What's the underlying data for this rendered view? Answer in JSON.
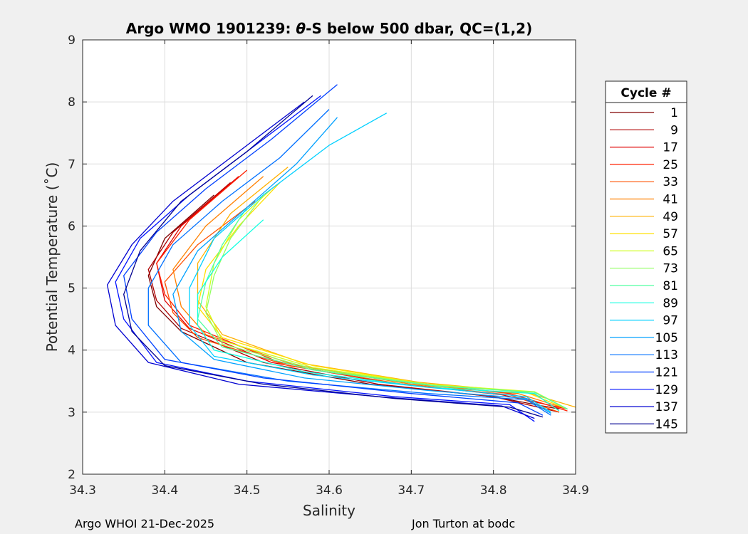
{
  "chart_data": {
    "type": "line",
    "title_prefix": "Argo WMO 1901239: ",
    "title_theta": "θ",
    "title_suffix": "-S below 500 dbar,  QC=(1,2)",
    "xlabel": "Salinity",
    "ylabel": "Potential Temperature (˚C)",
    "xlim": [
      34.3,
      34.9
    ],
    "ylim": [
      2,
      9
    ],
    "xticks": [
      "34.3",
      "34.4",
      "34.5",
      "34.6",
      "34.7",
      "34.8",
      "34.9"
    ],
    "yticks": [
      "2",
      "3",
      "4",
      "5",
      "6",
      "7",
      "8",
      "9"
    ],
    "grid": true,
    "legend_title": "Cycle #",
    "legend_position": "right-outside",
    "series": [
      {
        "name": "1",
        "color": "#800000",
        "points": [
          [
            34.46,
            6.5
          ],
          [
            34.4,
            5.8
          ],
          [
            34.38,
            5.2
          ],
          [
            34.39,
            4.7
          ],
          [
            34.42,
            4.3
          ],
          [
            34.5,
            3.8
          ],
          [
            34.65,
            3.45
          ],
          [
            34.8,
            3.25
          ],
          [
            34.88,
            3.05
          ]
        ]
      },
      {
        "name": "9",
        "color": "#b00000",
        "points": [
          [
            34.48,
            6.7
          ],
          [
            34.41,
            5.9
          ],
          [
            34.38,
            5.3
          ],
          [
            34.39,
            4.8
          ],
          [
            34.42,
            4.35
          ],
          [
            34.52,
            3.8
          ],
          [
            34.66,
            3.45
          ],
          [
            34.8,
            3.25
          ],
          [
            34.88,
            3.0
          ]
        ]
      },
      {
        "name": "17",
        "color": "#e00000",
        "points": [
          [
            34.49,
            6.8
          ],
          [
            34.42,
            6.0
          ],
          [
            34.39,
            5.4
          ],
          [
            34.4,
            4.8
          ],
          [
            34.43,
            4.35
          ],
          [
            34.53,
            3.8
          ],
          [
            34.67,
            3.48
          ],
          [
            34.81,
            3.28
          ],
          [
            34.89,
            3.05
          ]
        ]
      },
      {
        "name": "25",
        "color": "#ff2000",
        "points": [
          [
            34.5,
            6.9
          ],
          [
            34.43,
            6.1
          ],
          [
            34.39,
            5.4
          ],
          [
            34.4,
            4.9
          ],
          [
            34.43,
            4.4
          ],
          [
            34.54,
            3.8
          ],
          [
            34.68,
            3.5
          ],
          [
            34.82,
            3.3
          ],
          [
            34.89,
            3.02
          ]
        ]
      },
      {
        "name": "33",
        "color": "#ff5000",
        "points": [
          [
            34.51,
            6.4
          ],
          [
            34.44,
            5.7
          ],
          [
            34.4,
            5.1
          ],
          [
            34.41,
            4.6
          ],
          [
            34.44,
            4.2
          ],
          [
            34.55,
            3.75
          ],
          [
            34.69,
            3.45
          ],
          [
            34.82,
            3.28
          ],
          [
            34.88,
            3.0
          ]
        ]
      },
      {
        "name": "41",
        "color": "#ff8000",
        "points": [
          [
            34.52,
            6.8
          ],
          [
            34.45,
            6.0
          ],
          [
            34.41,
            5.3
          ],
          [
            34.42,
            4.7
          ],
          [
            34.45,
            4.25
          ],
          [
            34.56,
            3.75
          ],
          [
            34.7,
            3.45
          ],
          [
            34.83,
            3.3
          ],
          [
            34.89,
            3.05
          ]
        ]
      },
      {
        "name": "49",
        "color": "#ffb000",
        "points": [
          [
            34.55,
            6.95
          ],
          [
            34.48,
            6.2
          ],
          [
            34.44,
            5.4
          ],
          [
            34.44,
            4.8
          ],
          [
            34.47,
            4.25
          ],
          [
            34.57,
            3.78
          ],
          [
            34.71,
            3.48
          ],
          [
            34.84,
            3.32
          ],
          [
            34.9,
            3.08
          ]
        ]
      },
      {
        "name": "57",
        "color": "#ffe000",
        "points": [
          [
            34.54,
            6.7
          ],
          [
            34.49,
            6.0
          ],
          [
            34.45,
            5.3
          ],
          [
            34.44,
            4.7
          ],
          [
            34.47,
            4.2
          ],
          [
            34.58,
            3.75
          ],
          [
            34.72,
            3.45
          ],
          [
            34.84,
            3.32
          ],
          [
            34.89,
            3.05
          ]
        ]
      },
      {
        "name": "65",
        "color": "#d0ff20",
        "points": [
          [
            34.53,
            6.6
          ],
          [
            34.49,
            6.1
          ],
          [
            34.46,
            5.4
          ],
          [
            34.45,
            4.7
          ],
          [
            34.47,
            4.15
          ],
          [
            34.58,
            3.72
          ],
          [
            34.72,
            3.45
          ],
          [
            34.85,
            3.33
          ],
          [
            34.89,
            3.05
          ]
        ]
      },
      {
        "name": "73",
        "color": "#90ff60",
        "points": [
          [
            34.52,
            6.5
          ],
          [
            34.48,
            5.8
          ],
          [
            34.46,
            5.2
          ],
          [
            34.45,
            4.6
          ],
          [
            34.47,
            4.1
          ],
          [
            34.58,
            3.7
          ],
          [
            34.73,
            3.43
          ],
          [
            34.85,
            3.32
          ],
          [
            34.89,
            3.05
          ]
        ]
      },
      {
        "name": "81",
        "color": "#50ffa0",
        "points": [
          [
            34.5,
            6.3
          ],
          [
            34.47,
            5.7
          ],
          [
            34.45,
            5.1
          ],
          [
            34.44,
            4.5
          ],
          [
            34.47,
            4.05
          ],
          [
            34.58,
            3.68
          ],
          [
            34.73,
            3.42
          ],
          [
            34.85,
            3.32
          ],
          [
            34.89,
            3.05
          ]
        ]
      },
      {
        "name": "89",
        "color": "#10ffe0",
        "points": [
          [
            34.52,
            6.1
          ],
          [
            34.47,
            5.5
          ],
          [
            34.44,
            4.9
          ],
          [
            34.44,
            4.4
          ],
          [
            34.46,
            4.0
          ],
          [
            34.57,
            3.65
          ],
          [
            34.72,
            3.4
          ],
          [
            34.85,
            3.3
          ],
          [
            34.88,
            3.02
          ]
        ]
      },
      {
        "name": "97",
        "color": "#00d0ff",
        "points": [
          [
            34.67,
            7.82
          ],
          [
            34.6,
            7.3
          ],
          [
            34.52,
            6.5
          ],
          [
            34.46,
            5.8
          ],
          [
            34.43,
            5.0
          ],
          [
            34.43,
            4.4
          ],
          [
            34.46,
            3.9
          ],
          [
            34.58,
            3.6
          ],
          [
            34.72,
            3.4
          ],
          [
            34.84,
            3.25
          ],
          [
            34.87,
            3.0
          ]
        ]
      },
      {
        "name": "105",
        "color": "#00a0ff",
        "points": [
          [
            34.61,
            7.75
          ],
          [
            34.56,
            7.0
          ],
          [
            34.5,
            6.3
          ],
          [
            34.44,
            5.6
          ],
          [
            34.41,
            4.9
          ],
          [
            34.42,
            4.3
          ],
          [
            34.46,
            3.85
          ],
          [
            34.57,
            3.55
          ],
          [
            34.72,
            3.35
          ],
          [
            34.84,
            3.22
          ],
          [
            34.87,
            2.98
          ]
        ]
      },
      {
        "name": "113",
        "color": "#0070ff",
        "points": [
          [
            34.6,
            7.88
          ],
          [
            34.54,
            7.1
          ],
          [
            34.47,
            6.4
          ],
          [
            34.41,
            5.7
          ],
          [
            34.38,
            5.0
          ],
          [
            34.38,
            4.4
          ],
          [
            34.42,
            3.8
          ],
          [
            34.55,
            3.5
          ],
          [
            34.72,
            3.3
          ],
          [
            34.84,
            3.2
          ],
          [
            34.87,
            2.95
          ]
        ]
      },
      {
        "name": "121",
        "color": "#0040ff",
        "points": [
          [
            34.61,
            8.28
          ],
          [
            34.53,
            7.4
          ],
          [
            34.45,
            6.6
          ],
          [
            34.39,
            5.9
          ],
          [
            34.35,
            5.2
          ],
          [
            34.36,
            4.5
          ],
          [
            34.4,
            3.85
          ],
          [
            34.52,
            3.55
          ],
          [
            34.7,
            3.3
          ],
          [
            34.83,
            3.15
          ],
          [
            34.86,
            2.95
          ]
        ]
      },
      {
        "name": "129",
        "color": "#0010ff",
        "points": [
          [
            34.59,
            8.1
          ],
          [
            34.51,
            7.3
          ],
          [
            34.43,
            6.5
          ],
          [
            34.37,
            5.8
          ],
          [
            34.34,
            5.1
          ],
          [
            34.35,
            4.5
          ],
          [
            34.39,
            3.8
          ],
          [
            34.5,
            3.5
          ],
          [
            34.68,
            3.25
          ],
          [
            34.82,
            3.12
          ],
          [
            34.85,
            2.85
          ]
        ]
      },
      {
        "name": "137",
        "color": "#0000d0",
        "points": [
          [
            34.57,
            8.0
          ],
          [
            34.49,
            7.2
          ],
          [
            34.41,
            6.4
          ],
          [
            34.36,
            5.7
          ],
          [
            34.33,
            5.05
          ],
          [
            34.34,
            4.4
          ],
          [
            34.38,
            3.8
          ],
          [
            34.49,
            3.45
          ],
          [
            34.66,
            3.25
          ],
          [
            34.81,
            3.1
          ],
          [
            34.85,
            2.9
          ]
        ]
      },
      {
        "name": "145",
        "color": "#000090",
        "points": [
          [
            34.58,
            8.1
          ],
          [
            34.5,
            7.2
          ],
          [
            34.42,
            6.4
          ],
          [
            34.37,
            5.6
          ],
          [
            34.35,
            4.9
          ],
          [
            34.36,
            4.3
          ],
          [
            34.4,
            3.75
          ],
          [
            34.52,
            3.45
          ],
          [
            34.68,
            3.22
          ],
          [
            34.82,
            3.08
          ],
          [
            34.86,
            2.92
          ]
        ]
      }
    ]
  },
  "footer": {
    "left": "Argo WHOI 21-Dec-2025",
    "right": "Jon Turton at bodc"
  }
}
